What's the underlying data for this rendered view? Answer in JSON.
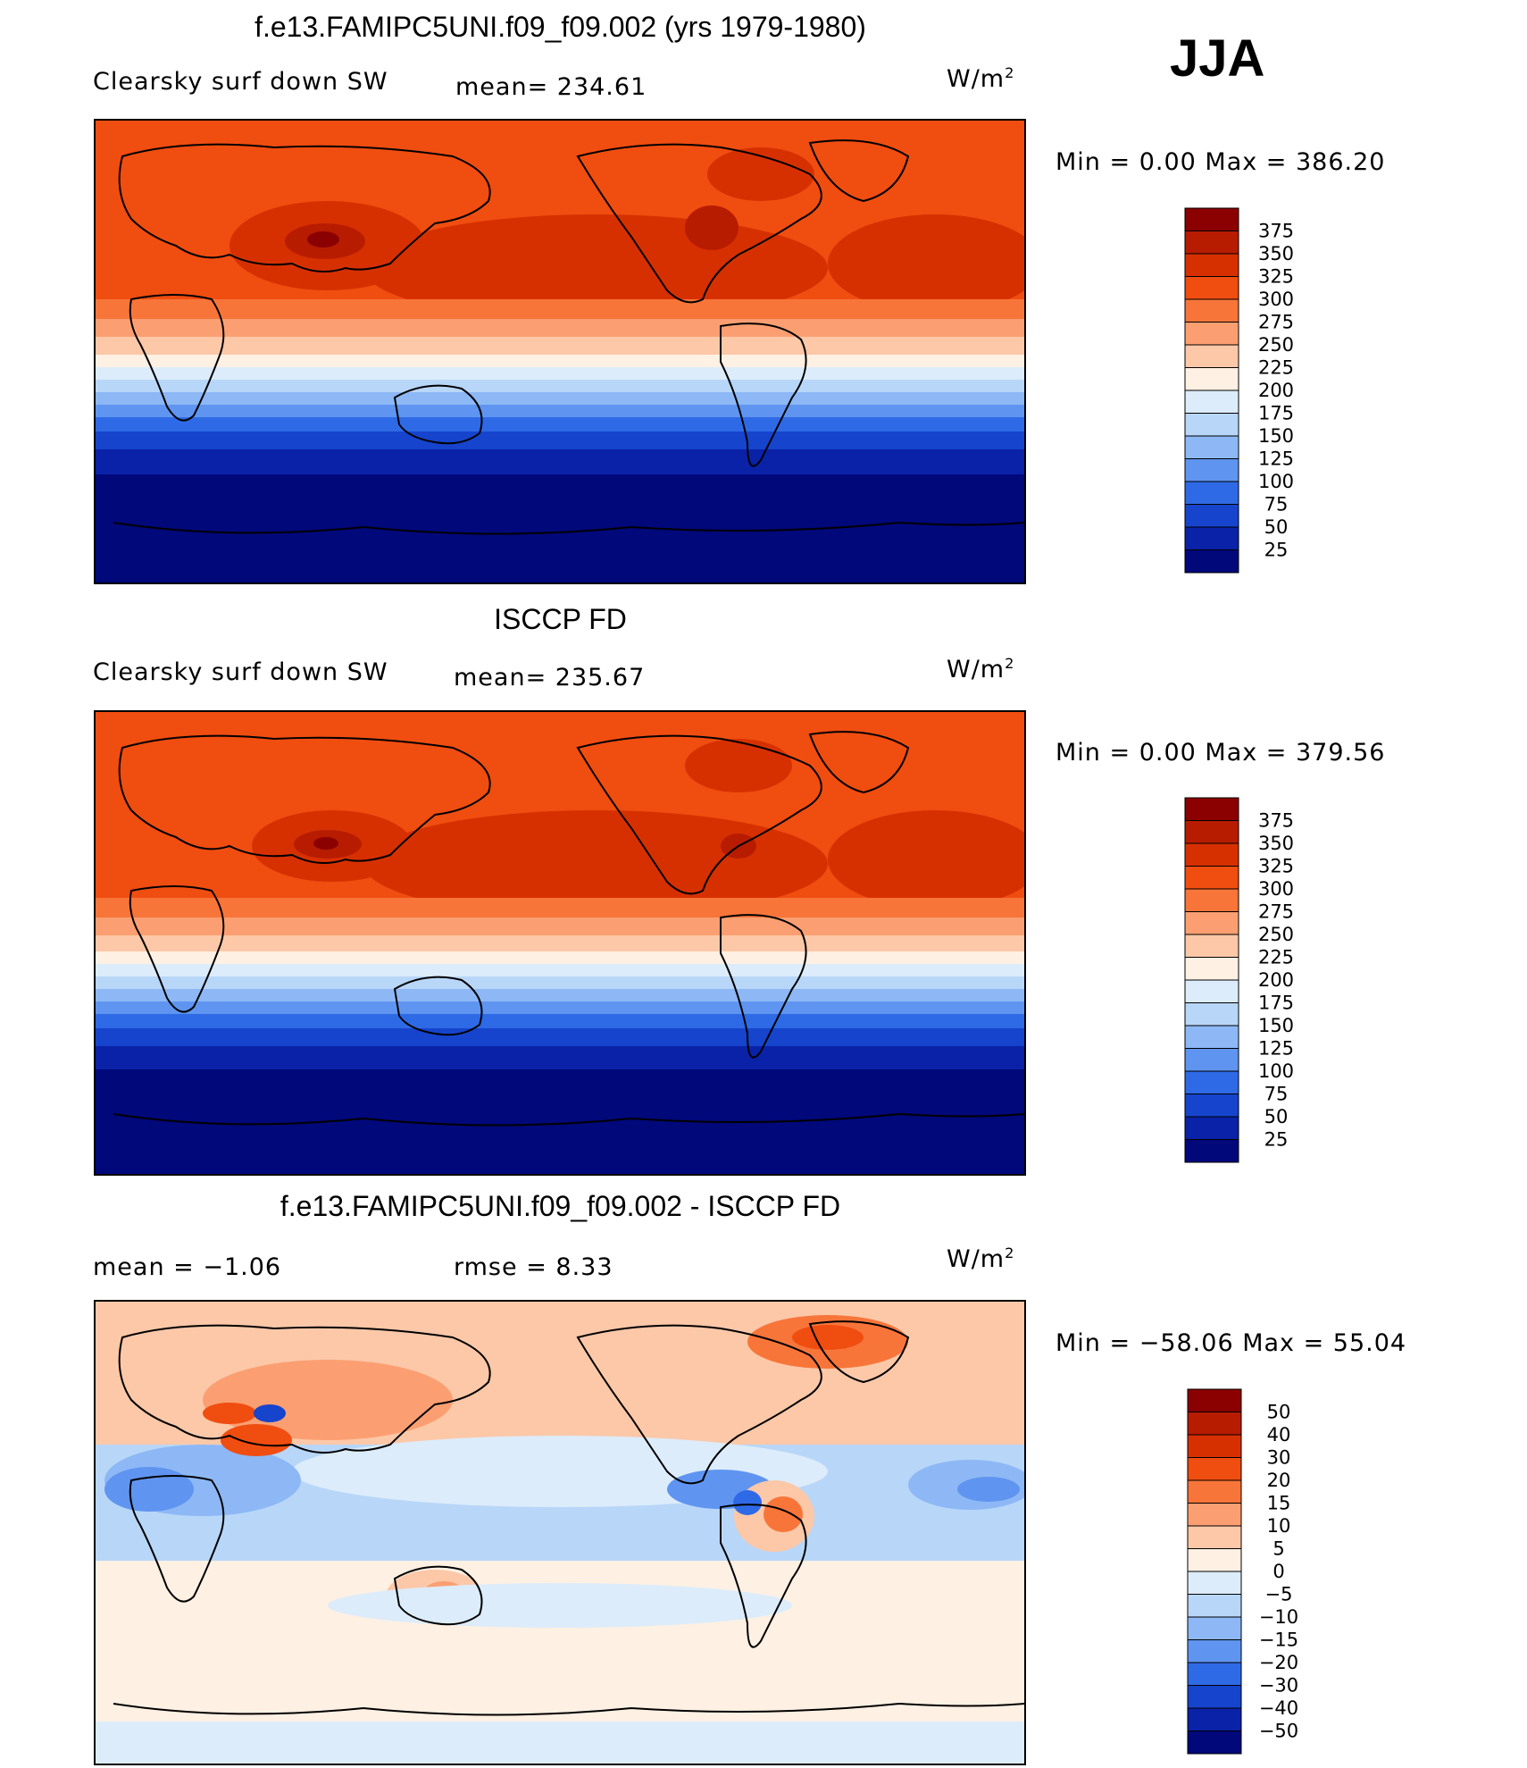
{
  "season": "JJA",
  "units": "W/m",
  "units_exp": "2",
  "panels": [
    {
      "title": "f.e13.FAMIPC5UNI.f09_f09.002 (yrs 1979-1980)",
      "variable": "Clearsky surf down SW",
      "stat_left": "",
      "stat_right": "mean= 234.61",
      "range": "Min =     0.00  Max  =  386.20",
      "colorbar": [
        "375",
        "350",
        "325",
        "300",
        "275",
        "250",
        "225",
        "200",
        "175",
        "150",
        "125",
        "100",
        "75",
        "50",
        "25"
      ],
      "colors": [
        "#8b0000",
        "#b71c00",
        "#d73000",
        "#f04d10",
        "#f8753a",
        "#fb9f72",
        "#fcc8a8",
        "#fef0e3",
        "#dcecfb",
        "#b8d6f8",
        "#8db8f5",
        "#5f95f0",
        "#2f6ae6",
        "#1644cc",
        "#0a22a8",
        "#00087a"
      ]
    },
    {
      "title": "ISCCP FD",
      "variable": "Clearsky surf down SW",
      "stat_left": "",
      "stat_right": "mean= 235.67",
      "range": "Min =     0.00  Max  =  379.56",
      "colorbar": [
        "375",
        "350",
        "325",
        "300",
        "275",
        "250",
        "225",
        "200",
        "175",
        "150",
        "125",
        "100",
        "75",
        "50",
        "25"
      ],
      "colors": [
        "#8b0000",
        "#b71c00",
        "#d73000",
        "#f04d10",
        "#f8753a",
        "#fb9f72",
        "#fcc8a8",
        "#fef0e3",
        "#dcecfb",
        "#b8d6f8",
        "#8db8f5",
        "#5f95f0",
        "#2f6ae6",
        "#1644cc",
        "#0a22a8",
        "#00087a"
      ]
    },
    {
      "title": "f.e13.FAMIPC5UNI.f09_f09.002 - ISCCP FD",
      "variable": "",
      "stat_left": "mean  =    −1.06",
      "stat_right": "rmse  =     8.33",
      "range": "Min  = −58.06  Max  =    55.04",
      "colorbar": [
        "50",
        "40",
        "30",
        "20",
        "15",
        "10",
        "5",
        "0",
        "−5",
        "−10",
        "−15",
        "−20",
        "−30",
        "−40",
        "−50"
      ],
      "colors": [
        "#8b0000",
        "#b71c00",
        "#d73000",
        "#f04d10",
        "#f8753a",
        "#fb9f72",
        "#fcc8a8",
        "#fef0e3",
        "#dcecfb",
        "#b8d6f8",
        "#8db8f5",
        "#5f95f0",
        "#2f6ae6",
        "#1644cc",
        "#0a22a8",
        "#00087a"
      ]
    }
  ]
}
